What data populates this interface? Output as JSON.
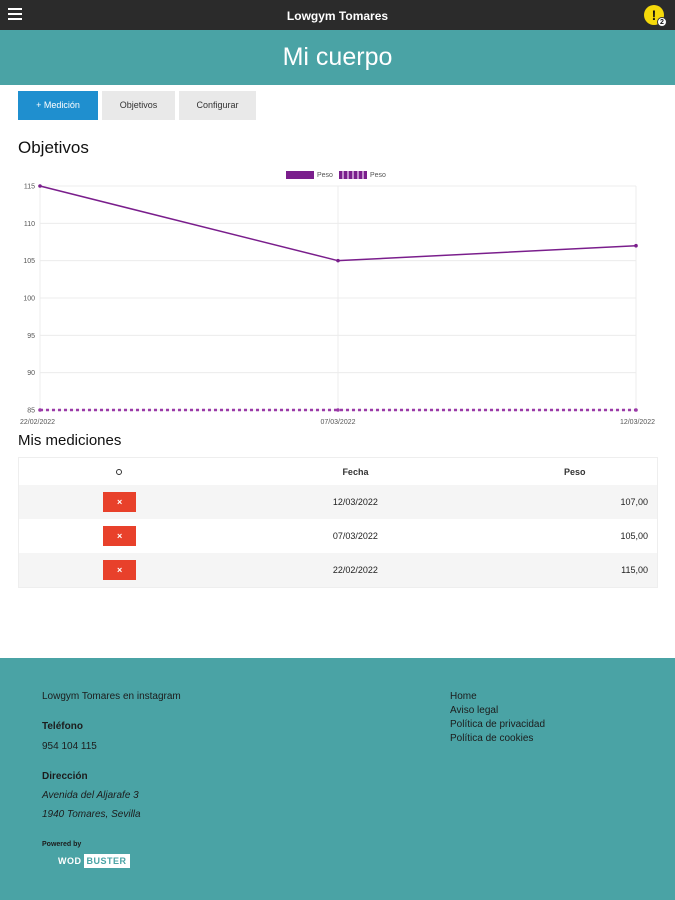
{
  "header": {
    "title": "Lowgym Tomares",
    "alert_icon": "!",
    "alert_count": "2"
  },
  "hero": {
    "title": "Mi cuerpo"
  },
  "actions": {
    "add": "+ Medición",
    "objectives": "Objetivos",
    "configure": "Configurar"
  },
  "sections": {
    "objectives_title": "Objetivos",
    "measurements_title": "Mis mediciones"
  },
  "chart_data": {
    "type": "line",
    "x": [
      "22/02/2022",
      "07/03/2022",
      "12/03/2022"
    ],
    "series": [
      {
        "name": "Peso",
        "values": [
          115,
          105,
          107
        ],
        "color": "#7a1e8c",
        "style": "solid"
      },
      {
        "name": "Peso",
        "values": [
          85,
          85,
          85
        ],
        "color": "#9b3aa8",
        "style": "dashed"
      }
    ],
    "yticks": [
      "115",
      "110",
      "105",
      "100",
      "95",
      "90",
      "85"
    ],
    "ylim": [
      85,
      115
    ],
    "legend": "top-center",
    "grid": true
  },
  "table": {
    "headers": [
      "",
      "Fecha",
      "Peso"
    ],
    "delete_label": "×",
    "rows": [
      {
        "fecha": "12/03/2022",
        "peso": "107,00"
      },
      {
        "fecha": "07/03/2022",
        "peso": "105,00"
      },
      {
        "fecha": "22/02/2022",
        "peso": "115,00"
      }
    ]
  },
  "footer": {
    "instagram": "Lowgym Tomares en instagram",
    "phone_label": "Teléfono",
    "phone": "954 104 115",
    "address_label": "Dirección",
    "address_line1": "Avenida del Aljarafe 3",
    "address_line2": "1940 Tomares, Sevilla",
    "links": [
      "Home",
      "Aviso legal",
      "Política de privacidad",
      "Política de cookies"
    ],
    "powered_by": "Powered by",
    "logo_a": "WOD",
    "logo_b": "BUSTER"
  },
  "colors": {
    "teal": "#4aa3a5",
    "accent": "#1f8fcf",
    "delete": "#e8412b",
    "series": "#7a1e8c"
  }
}
